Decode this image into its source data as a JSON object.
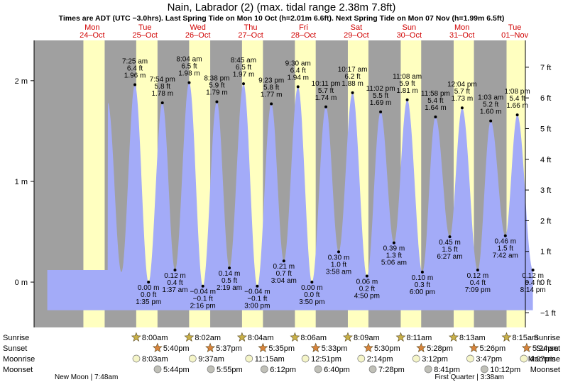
{
  "title": "Nain, Labrador (2) (max. tidal range 2.38m 7.8ft)",
  "subtitle": "Times are ADT (UTC −3.0hrs). Last Spring Tide on Mon 10 Oct (h=2.01m 6.6ft). Next Spring Tide on Mon 07 Nov (h=1.99m 6.5ft)",
  "chart_data": {
    "type": "area",
    "title": "Nain, Labrador (2) (max. tidal range 2.38m 7.8ft)",
    "ylim_m": [
      -0.45,
      2.4
    ],
    "left_ticks": [
      {
        "value": 0,
        "label": "0 m"
      },
      {
        "value": 1,
        "label": "1 m"
      },
      {
        "value": 2,
        "label": "2 m"
      }
    ],
    "right_ticks": [
      {
        "value": -1,
        "label": "−1 ft"
      },
      {
        "value": 0,
        "label": "0 ft"
      },
      {
        "value": 1,
        "label": "1 ft"
      },
      {
        "value": 2,
        "label": "2 ft"
      },
      {
        "value": 3,
        "label": "3 ft"
      },
      {
        "value": 4,
        "label": "4 ft"
      },
      {
        "value": 5,
        "label": "5 ft"
      },
      {
        "value": 6,
        "label": "6 ft"
      },
      {
        "value": 7,
        "label": "7 ft"
      }
    ],
    "x_range_days": [
      -0.6,
      8.7
    ],
    "days": [
      {
        "day": "Mon",
        "date": "24–Oct",
        "sunrise": 8.0,
        "sunset": 17.67
      },
      {
        "day": "Tue",
        "date": "25–Oct",
        "sunrise": 8.0,
        "sunset": 17.67
      },
      {
        "day": "Wed",
        "date": "26–Oct",
        "sunrise": 8.03,
        "sunset": 17.62
      },
      {
        "day": "Thu",
        "date": "27–Oct",
        "sunrise": 8.07,
        "sunset": 17.58
      },
      {
        "day": "Fri",
        "date": "28–Oct",
        "sunrise": 8.1,
        "sunset": 17.55
      },
      {
        "day": "Sat",
        "date": "29–Oct",
        "sunrise": 8.15,
        "sunset": 17.5
      },
      {
        "day": "Sun",
        "date": "30–Oct",
        "sunrise": 8.18,
        "sunset": 17.47
      },
      {
        "day": "Mon",
        "date": "31–Oct",
        "sunrise": 8.22,
        "sunset": 17.43
      },
      {
        "day": "Tue",
        "date": "01–Nov",
        "sunrise": 8.25,
        "sunset": 17.4
      }
    ],
    "tides": [
      {
        "day": 1,
        "hour": 7.42,
        "m": 1.96,
        "time": "7:25 am",
        "ft": "6.4 ft",
        "mtxt": "1.96 m",
        "type": "high"
      },
      {
        "day": 1,
        "hour": 13.58,
        "m": 0.0,
        "time": "1:35 pm",
        "ft": "0.0 ft",
        "mtxt": "0.00 m",
        "type": "low"
      },
      {
        "day": 1,
        "hour": 19.9,
        "m": 1.78,
        "time": "7:54 pm",
        "ft": "5.8 ft",
        "mtxt": "1.78 m",
        "type": "high"
      },
      {
        "day": 2,
        "hour": 1.62,
        "m": 0.12,
        "time": "1:37 am",
        "ft": "0.4 ft",
        "mtxt": "0.12 m",
        "type": "low"
      },
      {
        "day": 2,
        "hour": 8.07,
        "m": 1.98,
        "time": "8:04 am",
        "ft": "6.5 ft",
        "mtxt": "1.98 m",
        "type": "high"
      },
      {
        "day": 2,
        "hour": 14.27,
        "m": -0.04,
        "time": "2:16 pm",
        "ft": "−0.1 ft",
        "mtxt": "−0.04 m",
        "type": "low"
      },
      {
        "day": 2,
        "hour": 20.63,
        "m": 1.79,
        "time": "8:38 pm",
        "ft": "5.9 ft",
        "mtxt": "1.79 m",
        "type": "high"
      },
      {
        "day": 3,
        "hour": 2.32,
        "m": 0.14,
        "time": "2:19 am",
        "ft": "0.5 ft",
        "mtxt": "0.14 m",
        "type": "low"
      },
      {
        "day": 3,
        "hour": 8.75,
        "m": 1.97,
        "time": "8:45 am",
        "ft": "6.5 ft",
        "mtxt": "1.97 m",
        "type": "high"
      },
      {
        "day": 3,
        "hour": 15.0,
        "m": -0.04,
        "time": "3:00 pm",
        "ft": "−0.1 ft",
        "mtxt": "−0.04 m",
        "type": "low"
      },
      {
        "day": 3,
        "hour": 21.38,
        "m": 1.77,
        "time": "9:23 pm",
        "ft": "5.8 ft",
        "mtxt": "1.77 m",
        "type": "high"
      },
      {
        "day": 4,
        "hour": 3.07,
        "m": 0.21,
        "time": "3:04 am",
        "ft": "0.7 ft",
        "mtxt": "0.21 m",
        "type": "low"
      },
      {
        "day": 4,
        "hour": 9.5,
        "m": 1.94,
        "time": "9:30 am",
        "ft": "6.4 ft",
        "mtxt": "1.94 m",
        "type": "high"
      },
      {
        "day": 4,
        "hour": 15.83,
        "m": 0.0,
        "time": "3:50 pm",
        "ft": "0.0 ft",
        "mtxt": "0.00 m",
        "type": "low"
      },
      {
        "day": 4,
        "hour": 22.18,
        "m": 1.74,
        "time": "10:11 pm",
        "ft": "5.7 ft",
        "mtxt": "1.74 m",
        "type": "high"
      },
      {
        "day": 5,
        "hour": 3.97,
        "m": 0.3,
        "time": "3:58 am",
        "ft": "1.0 ft",
        "mtxt": "0.30 m",
        "type": "low"
      },
      {
        "day": 5,
        "hour": 10.28,
        "m": 1.88,
        "time": "10:17 am",
        "ft": "6.2 ft",
        "mtxt": "1.88 m",
        "type": "high"
      },
      {
        "day": 5,
        "hour": 16.83,
        "m": 0.06,
        "time": "4:50 pm",
        "ft": "0.2 ft",
        "mtxt": "0.06 m",
        "type": "low"
      },
      {
        "day": 5,
        "hour": 23.03,
        "m": 1.69,
        "time": "11:02 pm",
        "ft": "5.5 ft",
        "mtxt": "1.69 m",
        "type": "high"
      },
      {
        "day": 6,
        "hour": 5.1,
        "m": 0.39,
        "time": "5:06 am",
        "ft": "1.3 ft",
        "mtxt": "0.39 m",
        "type": "low"
      },
      {
        "day": 6,
        "hour": 11.13,
        "m": 1.81,
        "time": "11:08 am",
        "ft": "5.9 ft",
        "mtxt": "1.81 m",
        "type": "high"
      },
      {
        "day": 6,
        "hour": 18.0,
        "m": 0.1,
        "time": "6:00 pm",
        "ft": "0.3 ft",
        "mtxt": "0.10 m",
        "type": "low"
      },
      {
        "day": 6,
        "hour": 23.97,
        "m": 1.64,
        "time": "11:58 pm",
        "ft": "5.4 ft",
        "mtxt": "1.64 m",
        "type": "high"
      },
      {
        "day": 7,
        "hour": 6.45,
        "m": 0.45,
        "time": "6:27 am",
        "ft": "1.5 ft",
        "mtxt": "0.45 m",
        "type": "low"
      },
      {
        "day": 7,
        "hour": 12.07,
        "m": 1.73,
        "time": "12:04 pm",
        "ft": "5.7 ft",
        "mtxt": "1.73 m",
        "type": "high"
      },
      {
        "day": 7,
        "hour": 19.15,
        "m": 0.12,
        "time": "7:09 pm",
        "ft": "0.4 ft",
        "mtxt": "0.12 m",
        "type": "low"
      },
      {
        "day": 8,
        "hour": 1.05,
        "m": 1.6,
        "time": "1:03 am",
        "ft": "5.2 ft",
        "mtxt": "1.60 m",
        "type": "high"
      },
      {
        "day": 8,
        "hour": 7.7,
        "m": 0.46,
        "time": "7:42 am",
        "ft": "1.5 ft",
        "mtxt": "0.46 m",
        "type": "low"
      },
      {
        "day": 8,
        "hour": 13.13,
        "m": 1.66,
        "time": "1:08 pm",
        "ft": "5.4 ft",
        "mtxt": "1.66 m",
        "type": "high"
      },
      {
        "day": 8,
        "hour": 20.23,
        "m": 0.12,
        "time": "8:14 pm",
        "ft": "0.4 ft",
        "mtxt": "0.12 m",
        "type": "low"
      }
    ],
    "astro_rows": {
      "labels": [
        "Sunrise",
        "Sunset",
        "Moonrise",
        "Moonset"
      ],
      "sunrise": [
        {
          "day": 1,
          "hour": 8.0,
          "text": "8:00am"
        },
        {
          "day": 2,
          "hour": 8.03,
          "text": "8:02am"
        },
        {
          "day": 3,
          "hour": 8.07,
          "text": "8:04am"
        },
        {
          "day": 4,
          "hour": 8.1,
          "text": "8:06am"
        },
        {
          "day": 5,
          "hour": 8.15,
          "text": "8:09am"
        },
        {
          "day": 6,
          "hour": 8.18,
          "text": "8:11am"
        },
        {
          "day": 7,
          "hour": 8.22,
          "text": "8:13am"
        },
        {
          "day": 8,
          "hour": 8.25,
          "text": "8:15am"
        }
      ],
      "sunset": [
        {
          "day": 1,
          "hour": 17.67,
          "text": "5:40pm"
        },
        {
          "day": 2,
          "hour": 17.62,
          "text": "5:37pm"
        },
        {
          "day": 3,
          "hour": 17.58,
          "text": "5:35pm"
        },
        {
          "day": 4,
          "hour": 17.55,
          "text": "5:33pm"
        },
        {
          "day": 5,
          "hour": 17.5,
          "text": "5:30pm"
        },
        {
          "day": 6,
          "hour": 17.47,
          "text": "5:28pm"
        },
        {
          "day": 7,
          "hour": 17.43,
          "text": "5:26pm"
        },
        {
          "day": 8,
          "hour": 17.4,
          "text": "5:24pm"
        }
      ],
      "moonrise": [
        {
          "day": 1,
          "hour": 8.05,
          "text": "8:03am"
        },
        {
          "day": 2,
          "hour": 9.62,
          "text": "9:37am"
        },
        {
          "day": 3,
          "hour": 11.25,
          "text": "11:15am"
        },
        {
          "day": 4,
          "hour": 12.85,
          "text": "12:51pm"
        },
        {
          "day": 5,
          "hour": 14.23,
          "text": "2:14pm"
        },
        {
          "day": 6,
          "hour": 15.2,
          "text": "3:12pm"
        },
        {
          "day": 7,
          "hour": 15.78,
          "text": "3:47pm"
        },
        {
          "day": 8,
          "hour": 16.12,
          "text": "4:07pm"
        }
      ],
      "moonset": [
        {
          "day": 1,
          "hour": 17.73,
          "text": "5:44pm"
        },
        {
          "day": 2,
          "hour": 17.92,
          "text": "5:55pm"
        },
        {
          "day": 3,
          "hour": 18.2,
          "text": "6:12pm"
        },
        {
          "day": 4,
          "hour": 18.67,
          "text": "6:40pm"
        },
        {
          "day": 5,
          "hour": 19.47,
          "text": "7:28pm"
        },
        {
          "day": 6,
          "hour": 20.68,
          "text": "8:41pm"
        },
        {
          "day": 7,
          "hour": 22.2,
          "text": "10:12pm"
        }
      ]
    },
    "moon_phases": [
      {
        "text": "New Moon | 7:48am",
        "anchor": "left"
      },
      {
        "text": "First Quarter | 3:38am",
        "anchor": "right"
      }
    ],
    "colors": {
      "night": "#a0a0a0",
      "day": "#ffffc0",
      "water": "#a3abf8",
      "day_label": "#d00000",
      "sun_star": "#c8b048",
      "set_star": "#d8843c",
      "moonrise": "#f5f5c8",
      "moonset": "#c0c0b8"
    }
  }
}
